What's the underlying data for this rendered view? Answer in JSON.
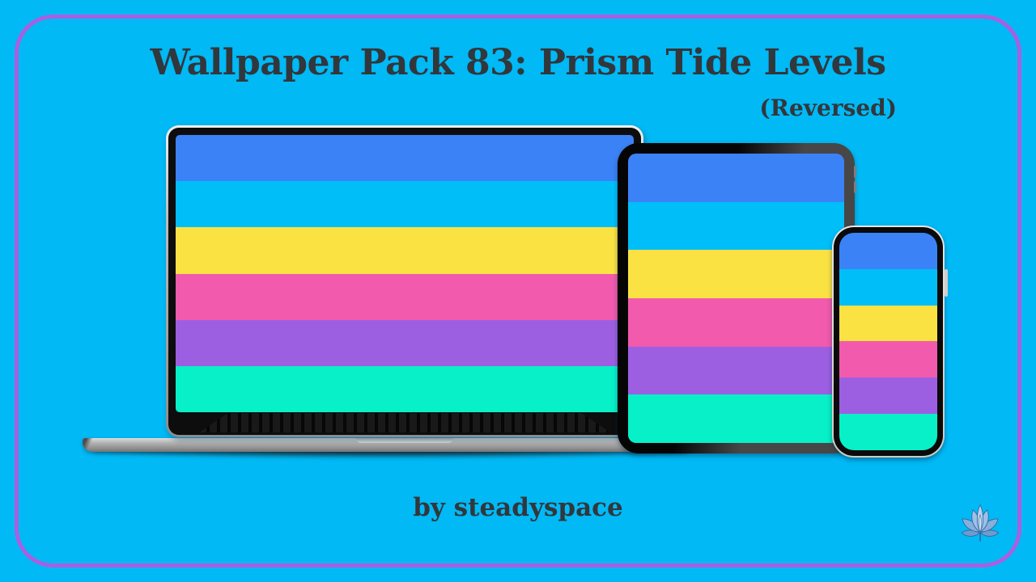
{
  "theme": {
    "background_color": "#00b9f5",
    "frame_border_color": "#a95fe2",
    "text_color": "#32373c"
  },
  "header": {
    "title": "Wallpaper Pack 83: Prism Tide Levels",
    "subtitle": "(Reversed)"
  },
  "wallpaper": {
    "pack_number": "83",
    "name": "Prism Tide Levels",
    "variant": "Reversed",
    "stripes": [
      {
        "name": "royal-blue",
        "color": "#3b82f7"
      },
      {
        "name": "sky-cyan",
        "color": "#00bef8"
      },
      {
        "name": "sun-yellow",
        "color": "#fbe243"
      },
      {
        "name": "magenta-pink",
        "color": "#f15aad"
      },
      {
        "name": "violet-purple",
        "color": "#9d5fe2"
      },
      {
        "name": "turquoise",
        "color": "#07f0c8"
      }
    ]
  },
  "devices": [
    {
      "type": "laptop"
    },
    {
      "type": "tablet"
    },
    {
      "type": "phone"
    }
  ],
  "footer": {
    "credit": "by steadyspace",
    "logo": "lotus-icon"
  }
}
